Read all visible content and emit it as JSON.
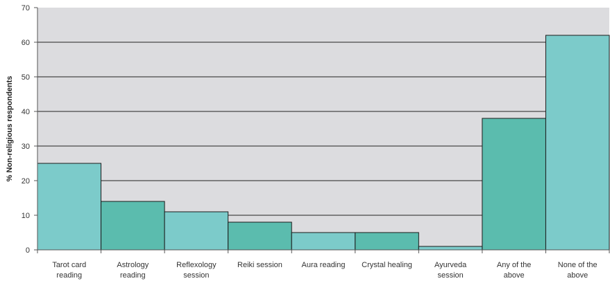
{
  "chart_data": {
    "type": "bar",
    "title": "",
    "xlabel": "",
    "ylabel": "% Non-religious respondents",
    "ylim": [
      0,
      70
    ],
    "yticks": [
      0,
      10,
      20,
      30,
      40,
      50,
      60,
      70
    ],
    "grid": true,
    "legend": "none",
    "categories": [
      [
        "Tarot card",
        "reading"
      ],
      [
        "Astrology",
        "reading"
      ],
      [
        "Reflexology",
        "session"
      ],
      [
        "Reiki session"
      ],
      [
        "Aura reading"
      ],
      [
        "Crystal healing"
      ],
      [
        "Ayurveda",
        "session"
      ],
      [
        "Any of the",
        "above"
      ],
      [
        "None of the",
        "above"
      ]
    ],
    "values": [
      25,
      14,
      11,
      8,
      5,
      5,
      1,
      38,
      62
    ],
    "colors": {
      "plot_background": "#dcdcdf",
      "bar_light": "#7ccbca",
      "bar_dark": "#5bbcae",
      "bar_outline": "#1a1a1a",
      "gridline": "#222222"
    }
  }
}
